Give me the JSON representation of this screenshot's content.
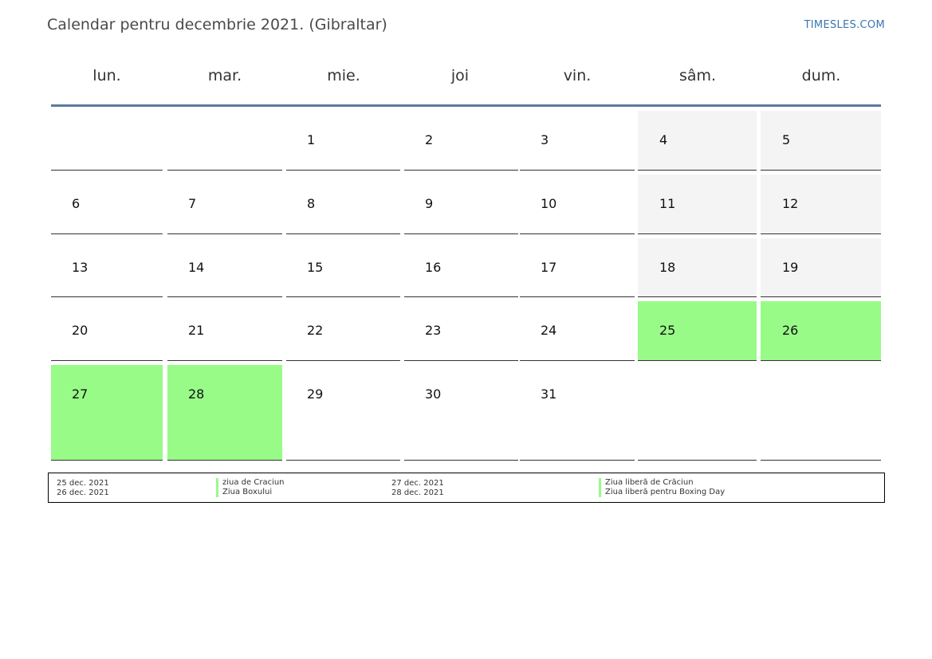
{
  "header": {
    "title": "Calendar pentru decembrie 2021. (Gibraltar)",
    "site": "TIMESLES.COM"
  },
  "weekdays": [
    "lun.",
    "mar.",
    "mie.",
    "joi",
    "vin.",
    "sâm.",
    "dum."
  ],
  "colors": {
    "holiday": "#98fb88",
    "weekend": "#f4f4f4",
    "header_line": "#5a7a9e",
    "link": "#3a76b0"
  },
  "weeks": [
    [
      "",
      "",
      "1",
      "2",
      "3",
      "4",
      "5"
    ],
    [
      "6",
      "7",
      "8",
      "9",
      "10",
      "11",
      "12"
    ],
    [
      "13",
      "14",
      "15",
      "16",
      "17",
      "18",
      "19"
    ],
    [
      "20",
      "21",
      "22",
      "23",
      "24",
      "25",
      "26"
    ],
    [
      "27",
      "28",
      "29",
      "30",
      "31",
      "",
      ""
    ]
  ],
  "holiday_days": [
    "25",
    "26",
    "27",
    "28"
  ],
  "legend": [
    {
      "date": "25 dec. 2021",
      "name": "ziua de Craciun"
    },
    {
      "date": "26 dec. 2021",
      "name": "Ziua Boxului"
    },
    {
      "date": "27 dec. 2021",
      "name": "Ziua liberă de Crăciun"
    },
    {
      "date": "28 dec. 2021",
      "name": "Ziua liberă pentru Boxing Day"
    }
  ]
}
